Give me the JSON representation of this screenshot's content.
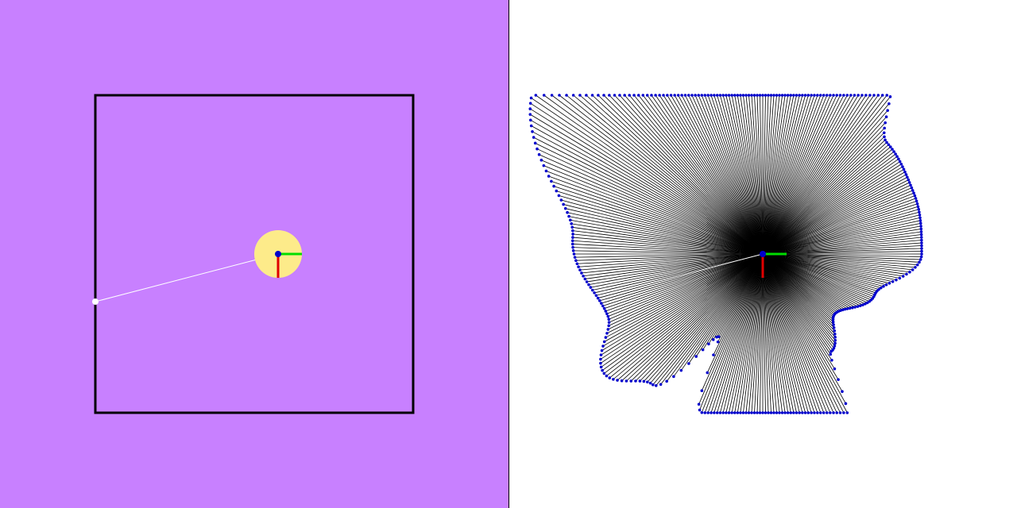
{
  "colors": {
    "left_background": "#c880ff",
    "right_background": "#ffffff",
    "room_wall": "#000000",
    "robot_body": "#fdeb8a",
    "robot_center": "#0000cc",
    "axis_x": "#e00000",
    "axis_y": "#00dd00",
    "ray_left": "#ffffff",
    "ray_right": "#000000",
    "hit_point": "#0000cc",
    "target_point": "#ffffff"
  },
  "scene": {
    "room": {
      "x_min": 120,
      "y_min": 120,
      "x_max": 520,
      "y_max": 520
    },
    "robot": {
      "x": 350,
      "y": 320,
      "radius": 30,
      "axis_length": 30,
      "heading_deg": 90
    },
    "target_ray": {
      "x": 120,
      "y": 380
    }
  },
  "scan": {
    "samples": 360,
    "origin": {
      "x": 960,
      "y": 320
    },
    "profile": [
      {
        "angle_deg": 0,
        "range": 200
      },
      {
        "angle_deg": 20,
        "range": 150
      },
      {
        "angle_deg": 40,
        "range": 118
      },
      {
        "angle_deg": 55,
        "range": 150
      },
      {
        "angle_deg": 65,
        "range": 250
      },
      {
        "angle_deg": 78,
        "range": 296
      },
      {
        "angle_deg": 90,
        "range": 300
      },
      {
        "angle_deg": 102,
        "range": 293
      },
      {
        "angle_deg": 112,
        "range": 212
      },
      {
        "angle_deg": 118,
        "range": 118
      },
      {
        "angle_deg": 130,
        "range": 215
      },
      {
        "angle_deg": 143,
        "range": 250
      },
      {
        "angle_deg": 158,
        "range": 210
      },
      {
        "angle_deg": 185,
        "range": 240
      },
      {
        "angle_deg": 220,
        "range": 360
      },
      {
        "angle_deg": 245,
        "range": 320
      },
      {
        "angle_deg": 270,
        "range": 200
      },
      {
        "angle_deg": 285,
        "range": 210
      },
      {
        "angle_deg": 300,
        "range": 300
      },
      {
        "angle_deg": 318,
        "range": 210
      },
      {
        "angle_deg": 338,
        "range": 205
      },
      {
        "angle_deg": 360,
        "range": 200
      }
    ]
  }
}
